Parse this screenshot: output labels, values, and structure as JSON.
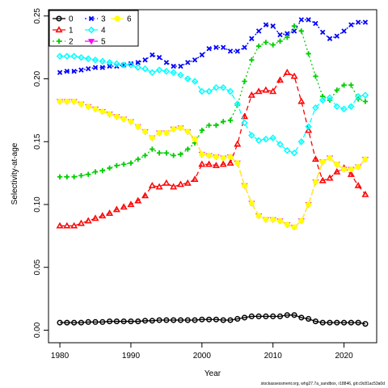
{
  "chart_data": {
    "type": "line",
    "title": "",
    "xlabel": "Year",
    "ylabel": "Selectivity-at-age",
    "xlim": [
      1978.4,
      2024.6
    ],
    "ylim": [
      -0.01,
      0.255
    ],
    "x_ticks": [
      "1980",
      "1990",
      "2000",
      "2010",
      "2020"
    ],
    "y_ticks": [
      "0.00",
      "0.05",
      "0.10",
      "0.15",
      "0.20",
      "0.25"
    ],
    "legend_position": "top-left",
    "grid": false,
    "x": [
      1980,
      1981,
      1982,
      1983,
      1984,
      1985,
      1986,
      1987,
      1988,
      1989,
      1990,
      1991,
      1992,
      1993,
      1994,
      1995,
      1996,
      1997,
      1998,
      1999,
      2000,
      2001,
      2002,
      2003,
      2004,
      2005,
      2006,
      2007,
      2008,
      2009,
      2010,
      2011,
      2012,
      2013,
      2014,
      2015,
      2016,
      2017,
      2018,
      2019,
      2020,
      2021,
      2022,
      2023
    ],
    "series": [
      {
        "name": "0",
        "color": "#000000",
        "marker": "circle",
        "values": [
          0.006,
          0.006,
          0.006,
          0.006,
          0.0065,
          0.0065,
          0.0065,
          0.007,
          0.007,
          0.007,
          0.007,
          0.007,
          0.0075,
          0.0075,
          0.008,
          0.008,
          0.008,
          0.008,
          0.008,
          0.008,
          0.0085,
          0.0085,
          0.0085,
          0.008,
          0.008,
          0.009,
          0.01,
          0.011,
          0.011,
          0.011,
          0.011,
          0.011,
          0.012,
          0.012,
          0.01,
          0.009,
          0.007,
          0.006,
          0.006,
          0.006,
          0.006,
          0.006,
          0.006,
          0.005
        ]
      },
      {
        "name": "1",
        "color": "#ff0000",
        "marker": "triangle-up",
        "values": [
          0.083,
          0.083,
          0.083,
          0.085,
          0.087,
          0.089,
          0.091,
          0.093,
          0.096,
          0.098,
          0.1,
          0.103,
          0.107,
          0.115,
          0.114,
          0.117,
          0.114,
          0.116,
          0.117,
          0.12,
          0.132,
          0.132,
          0.131,
          0.132,
          0.133,
          0.148,
          0.17,
          0.187,
          0.19,
          0.191,
          0.19,
          0.199,
          0.205,
          0.202,
          0.182,
          0.159,
          0.136,
          0.119,
          0.121,
          0.126,
          0.129,
          0.124,
          0.115,
          0.108
        ]
      },
      {
        "name": "2",
        "color": "#00cd00",
        "marker": "plus",
        "values": [
          0.122,
          0.122,
          0.122,
          0.123,
          0.124,
          0.126,
          0.127,
          0.129,
          0.131,
          0.132,
          0.133,
          0.136,
          0.139,
          0.144,
          0.141,
          0.141,
          0.139,
          0.14,
          0.144,
          0.149,
          0.159,
          0.163,
          0.163,
          0.166,
          0.167,
          0.179,
          0.198,
          0.215,
          0.226,
          0.229,
          0.227,
          0.23,
          0.233,
          0.242,
          0.238,
          0.22,
          0.202,
          0.186,
          0.183,
          0.191,
          0.195,
          0.195,
          0.184,
          0.182
        ]
      },
      {
        "name": "3",
        "color": "#0000ff",
        "marker": "x",
        "values": [
          0.205,
          0.206,
          0.206,
          0.207,
          0.208,
          0.209,
          0.209,
          0.21,
          0.21,
          0.211,
          0.212,
          0.213,
          0.215,
          0.219,
          0.217,
          0.213,
          0.21,
          0.21,
          0.213,
          0.215,
          0.219,
          0.224,
          0.225,
          0.225,
          0.222,
          0.222,
          0.225,
          0.232,
          0.238,
          0.243,
          0.242,
          0.235,
          0.236,
          0.238,
          0.247,
          0.247,
          0.244,
          0.237,
          0.232,
          0.234,
          0.238,
          0.243,
          0.245,
          0.245
        ]
      },
      {
        "name": "4",
        "color": "#00ffff",
        "marker": "diamond",
        "values": [
          0.218,
          0.218,
          0.218,
          0.217,
          0.216,
          0.215,
          0.214,
          0.213,
          0.212,
          0.211,
          0.211,
          0.209,
          0.208,
          0.205,
          0.207,
          0.206,
          0.205,
          0.203,
          0.2,
          0.198,
          0.19,
          0.19,
          0.193,
          0.193,
          0.19,
          0.18,
          0.165,
          0.155,
          0.151,
          0.152,
          0.153,
          0.148,
          0.143,
          0.141,
          0.15,
          0.162,
          0.177,
          0.183,
          0.185,
          0.178,
          0.176,
          0.178,
          0.186,
          0.187
        ]
      },
      {
        "name": "5",
        "color": "#ff00ff",
        "marker": "triangle-down",
        "values": [
          0.182,
          0.182,
          0.182,
          0.18,
          0.178,
          0.176,
          0.174,
          0.172,
          0.17,
          0.168,
          0.166,
          0.162,
          0.158,
          0.153,
          0.157,
          0.157,
          0.16,
          0.161,
          0.158,
          0.152,
          0.14,
          0.139,
          0.138,
          0.137,
          0.138,
          0.133,
          0.115,
          0.101,
          0.091,
          0.088,
          0.088,
          0.087,
          0.084,
          0.082,
          0.087,
          0.1,
          0.118,
          0.134,
          0.137,
          0.132,
          0.128,
          0.128,
          0.13,
          0.136
        ]
      },
      {
        "name": "6",
        "color": "#ffff00",
        "marker": "circle",
        "values": [
          0.182,
          0.182,
          0.182,
          0.18,
          0.178,
          0.176,
          0.174,
          0.172,
          0.17,
          0.168,
          0.166,
          0.162,
          0.158,
          0.153,
          0.157,
          0.157,
          0.16,
          0.161,
          0.158,
          0.152,
          0.14,
          0.139,
          0.138,
          0.137,
          0.138,
          0.133,
          0.115,
          0.101,
          0.091,
          0.088,
          0.088,
          0.087,
          0.084,
          0.082,
          0.087,
          0.1,
          0.118,
          0.134,
          0.137,
          0.132,
          0.128,
          0.128,
          0.13,
          0.136
        ]
      }
    ]
  },
  "footer": {
    "text": "stockassessment.org, whg27.7a_sandbox, r18846, git:c9c81ac53a0d"
  }
}
